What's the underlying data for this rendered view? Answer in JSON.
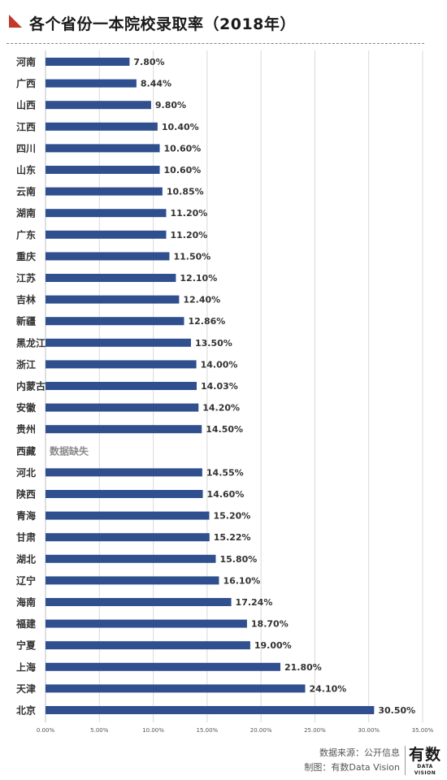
{
  "header": {
    "title": "各个省份一本院校录取率（2018年）"
  },
  "chart_data": {
    "type": "bar",
    "orientation": "horizontal",
    "categories": [
      "河南",
      "广西",
      "山西",
      "江西",
      "四川",
      "山东",
      "云南",
      "湖南",
      "广东",
      "重庆",
      "江苏",
      "吉林",
      "新疆",
      "黑龙江",
      "浙江",
      "内蒙古",
      "安徽",
      "贵州",
      "西藏",
      "河北",
      "陕西",
      "青海",
      "甘肃",
      "湖北",
      "辽宁",
      "海南",
      "福建",
      "宁夏",
      "上海",
      "天津",
      "北京"
    ],
    "values": [
      7.8,
      8.44,
      9.8,
      10.4,
      10.6,
      10.6,
      10.85,
      11.2,
      11.2,
      11.5,
      12.1,
      12.4,
      12.86,
      13.5,
      14.0,
      14.03,
      14.2,
      14.5,
      null,
      14.55,
      14.6,
      15.2,
      15.22,
      15.8,
      16.1,
      17.24,
      18.7,
      19.0,
      21.8,
      24.1,
      30.5
    ],
    "value_labels": [
      "7.80%",
      "8.44%",
      "9.80%",
      "10.40%",
      "10.60%",
      "10.60%",
      "10.85%",
      "11.20%",
      "11.20%",
      "11.50%",
      "12.10%",
      "12.40%",
      "12.86%",
      "13.50%",
      "14.00%",
      "14.03%",
      "14.20%",
      "14.50%",
      "数据缺失",
      "14.55%",
      "14.60%",
      "15.20%",
      "15.22%",
      "15.80%",
      "16.10%",
      "17.24%",
      "18.70%",
      "19.00%",
      "21.80%",
      "24.10%",
      "30.50%"
    ],
    "x_ticks": [
      "0.00%",
      "5.00%",
      "10.00%",
      "15.00%",
      "20.00%",
      "25.00%",
      "30.00%",
      "35.00%"
    ],
    "xlim": [
      0,
      35
    ],
    "bar_color": "#2f4f8f",
    "grid": true
  },
  "footer": {
    "source": "数据来源：公开信息",
    "maker": "制图：有数Data Vision"
  },
  "brand": {
    "main": "有数",
    "sub": "DATA VISION"
  }
}
